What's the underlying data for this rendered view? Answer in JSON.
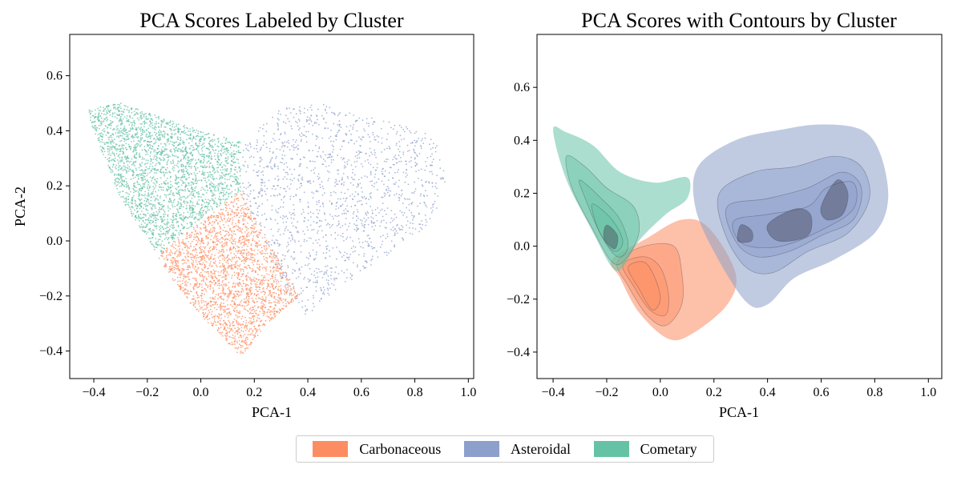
{
  "colors": {
    "carbonaceous": "#fc8d62",
    "asteroidal": "#8da0cb",
    "cometary": "#66c2a5"
  },
  "legend": {
    "items": [
      {
        "label": "Carbonaceous",
        "color": "#fc8d62"
      },
      {
        "label": "Asteroidal",
        "color": "#8da0cb"
      },
      {
        "label": "Cometary",
        "color": "#66c2a5"
      }
    ],
    "placement": "bottom-center"
  },
  "chart_data": [
    {
      "type": "scatter",
      "title": "PCA Scores Labeled by Cluster",
      "xlabel": "PCA-1",
      "ylabel": "PCA-2",
      "xlim": [
        -0.49,
        1.02
      ],
      "ylim": [
        -0.5,
        0.75
      ],
      "xticks": [
        -0.4,
        -0.2,
        0.0,
        0.2,
        0.4,
        0.6,
        0.8,
        1.0
      ],
      "xtick_labels": [
        "−0.4",
        "−0.2",
        "0.0",
        "0.2",
        "0.4",
        "0.6",
        "0.8",
        "1.0"
      ],
      "yticks": [
        -0.4,
        -0.2,
        0.0,
        0.2,
        0.4,
        0.6
      ],
      "ytick_labels": [
        "−0.4",
        "−0.2",
        "0.0",
        "0.2",
        "0.4",
        "0.6"
      ],
      "grid": false,
      "series": [
        {
          "name": "Cometary",
          "color": "#66c2a5",
          "region": [
            [
              -0.42,
              0.48
            ],
            [
              -0.3,
              0.5
            ],
            [
              -0.15,
              0.45
            ],
            [
              0.0,
              0.4
            ],
            [
              0.15,
              0.36
            ],
            [
              0.15,
              0.18
            ],
            [
              0.0,
              0.08
            ],
            [
              -0.16,
              -0.05
            ],
            [
              -0.3,
              0.15
            ],
            [
              -0.42,
              0.45
            ]
          ]
        },
        {
          "name": "Carbonaceous",
          "color": "#fc8d62",
          "region": [
            [
              -0.16,
              -0.05
            ],
            [
              0.15,
              0.18
            ],
            [
              0.22,
              0.05
            ],
            [
              0.3,
              -0.08
            ],
            [
              0.37,
              -0.2
            ],
            [
              0.25,
              -0.3
            ],
            [
              0.15,
              -0.42
            ],
            [
              0.08,
              -0.35
            ],
            [
              -0.05,
              -0.22
            ],
            [
              -0.16,
              -0.06
            ]
          ]
        },
        {
          "name": "Asteroidal",
          "color": "#8da0cb",
          "region": [
            [
              0.15,
              0.36
            ],
            [
              0.3,
              0.48
            ],
            [
              0.45,
              0.5
            ],
            [
              0.6,
              0.46
            ],
            [
              0.75,
              0.42
            ],
            [
              0.88,
              0.38
            ],
            [
              0.92,
              0.2
            ],
            [
              0.85,
              0.05
            ],
            [
              0.7,
              -0.05
            ],
            [
              0.55,
              -0.15
            ],
            [
              0.4,
              -0.28
            ],
            [
              0.32,
              -0.18
            ],
            [
              0.23,
              0.02
            ],
            [
              0.15,
              0.18
            ]
          ]
        }
      ]
    },
    {
      "type": "contour",
      "title": "PCA Scores with Contours by Cluster",
      "xlabel": "PCA-1",
      "ylabel": "",
      "xlim": [
        -0.46,
        1.05
      ],
      "ylim": [
        -0.5,
        0.8
      ],
      "xticks": [
        -0.4,
        -0.2,
        0.0,
        0.2,
        0.4,
        0.6,
        0.8,
        1.0
      ],
      "xtick_labels": [
        "−0.4",
        "−0.2",
        "0.0",
        "0.2",
        "0.4",
        "0.6",
        "0.8",
        "1.0"
      ],
      "yticks": [
        -0.4,
        -0.2,
        0.0,
        0.2,
        0.4,
        0.6
      ],
      "ytick_labels": [
        "−0.4",
        "−0.2",
        "0.0",
        "0.2",
        "0.4",
        "0.6"
      ],
      "grid": false,
      "series": [
        {
          "name": "Carbonaceous",
          "color": "#fc8d62",
          "levels": [
            [
              [
                -0.18,
                -0.05
              ],
              [
                -0.05,
                0.03
              ],
              [
                0.08,
                0.1
              ],
              [
                0.18,
                0.07
              ],
              [
                0.28,
                -0.1
              ],
              [
                0.25,
                -0.22
              ],
              [
                0.12,
                -0.33
              ],
              [
                0.03,
                -0.35
              ],
              [
                -0.08,
                -0.25
              ],
              [
                -0.15,
                -0.12
              ]
            ],
            [
              [
                -0.16,
                -0.06
              ],
              [
                -0.06,
                0.0
              ],
              [
                0.05,
                0.0
              ],
              [
                0.08,
                -0.1
              ],
              [
                0.08,
                -0.22
              ],
              [
                0.02,
                -0.3
              ],
              [
                -0.05,
                -0.26
              ],
              [
                -0.12,
                -0.15
              ]
            ],
            [
              [
                -0.14,
                -0.07
              ],
              [
                -0.06,
                -0.04
              ],
              [
                0.0,
                -0.08
              ],
              [
                0.03,
                -0.18
              ],
              [
                0.02,
                -0.26
              ],
              [
                -0.04,
                -0.24
              ],
              [
                -0.1,
                -0.15
              ]
            ],
            [
              [
                -0.12,
                -0.08
              ],
              [
                -0.06,
                -0.06
              ],
              [
                -0.02,
                -0.12
              ],
              [
                0.0,
                -0.2
              ],
              [
                -0.03,
                -0.24
              ],
              [
                -0.08,
                -0.16
              ]
            ]
          ]
        },
        {
          "name": "Asteroidal",
          "color": "#8da0cb",
          "levels": [
            [
              [
                0.14,
                0.3
              ],
              [
                0.28,
                0.4
              ],
              [
                0.45,
                0.44
              ],
              [
                0.6,
                0.46
              ],
              [
                0.75,
                0.44
              ],
              [
                0.82,
                0.35
              ],
              [
                0.85,
                0.18
              ],
              [
                0.8,
                0.05
              ],
              [
                0.65,
                -0.05
              ],
              [
                0.5,
                -0.12
              ],
              [
                0.4,
                -0.22
              ],
              [
                0.32,
                -0.21
              ],
              [
                0.2,
                -0.02
              ],
              [
                0.13,
                0.15
              ]
            ],
            [
              [
                0.22,
                0.2
              ],
              [
                0.35,
                0.28
              ],
              [
                0.5,
                0.3
              ],
              [
                0.65,
                0.34
              ],
              [
                0.75,
                0.3
              ],
              [
                0.78,
                0.18
              ],
              [
                0.7,
                0.05
              ],
              [
                0.55,
                -0.02
              ],
              [
                0.42,
                -0.1
              ],
              [
                0.32,
                -0.08
              ],
              [
                0.24,
                0.05
              ]
            ],
            [
              [
                0.25,
                0.15
              ],
              [
                0.4,
                0.18
              ],
              [
                0.55,
                0.22
              ],
              [
                0.68,
                0.28
              ],
              [
                0.75,
                0.22
              ],
              [
                0.72,
                0.1
              ],
              [
                0.6,
                0.04
              ],
              [
                0.48,
                -0.02
              ],
              [
                0.36,
                -0.04
              ],
              [
                0.28,
                0.02
              ]
            ],
            [
              [
                0.28,
                0.1
              ],
              [
                0.4,
                0.12
              ],
              [
                0.55,
                0.15
              ],
              [
                0.62,
                0.22
              ],
              [
                0.72,
                0.24
              ],
              [
                0.72,
                0.14
              ],
              [
                0.6,
                0.06
              ],
              [
                0.45,
                0.0
              ],
              [
                0.33,
                0.0
              ],
              [
                0.28,
                0.04
              ]
            ],
            [
              [
                0.3,
                0.08
              ],
              [
                0.34,
                0.06
              ],
              [
                0.34,
                0.02
              ],
              [
                0.29,
                0.02
              ]
            ],
            [
              [
                0.4,
                0.08
              ],
              [
                0.5,
                0.14
              ],
              [
                0.56,
                0.12
              ],
              [
                0.55,
                0.04
              ],
              [
                0.44,
                0.02
              ]
            ],
            [
              [
                0.6,
                0.15
              ],
              [
                0.66,
                0.25
              ],
              [
                0.7,
                0.2
              ],
              [
                0.68,
                0.12
              ],
              [
                0.62,
                0.1
              ]
            ]
          ]
        },
        {
          "name": "Cometary",
          "color": "#66c2a5",
          "levels": [
            [
              [
                -0.4,
                0.44
              ],
              [
                -0.35,
                0.43
              ],
              [
                -0.25,
                0.38
              ],
              [
                -0.15,
                0.28
              ],
              [
                -0.02,
                0.24
              ],
              [
                0.1,
                0.26
              ],
              [
                0.1,
                0.18
              ],
              [
                0.02,
                0.12
              ],
              [
                -0.08,
                0.02
              ],
              [
                -0.14,
                -0.08
              ],
              [
                -0.18,
                -0.08
              ],
              [
                -0.25,
                0.05
              ],
              [
                -0.35,
                0.25
              ]
            ],
            [
              [
                -0.35,
                0.34
              ],
              [
                -0.28,
                0.3
              ],
              [
                -0.2,
                0.22
              ],
              [
                -0.1,
                0.15
              ],
              [
                -0.08,
                0.05
              ],
              [
                -0.13,
                -0.05
              ],
              [
                -0.18,
                -0.06
              ],
              [
                -0.25,
                0.06
              ],
              [
                -0.33,
                0.22
              ]
            ],
            [
              [
                -0.3,
                0.25
              ],
              [
                -0.22,
                0.18
              ],
              [
                -0.15,
                0.1
              ],
              [
                -0.12,
                0.0
              ],
              [
                -0.16,
                -0.04
              ],
              [
                -0.22,
                0.04
              ],
              [
                -0.28,
                0.18
              ]
            ],
            [
              [
                -0.25,
                0.16
              ],
              [
                -0.18,
                0.1
              ],
              [
                -0.14,
                0.02
              ],
              [
                -0.17,
                -0.02
              ],
              [
                -0.22,
                0.04
              ],
              [
                -0.25,
                0.12
              ]
            ],
            [
              [
                -0.2,
                0.08
              ],
              [
                -0.16,
                0.04
              ],
              [
                -0.17,
                -0.01
              ],
              [
                -0.21,
                0.03
              ]
            ]
          ]
        }
      ]
    }
  ]
}
